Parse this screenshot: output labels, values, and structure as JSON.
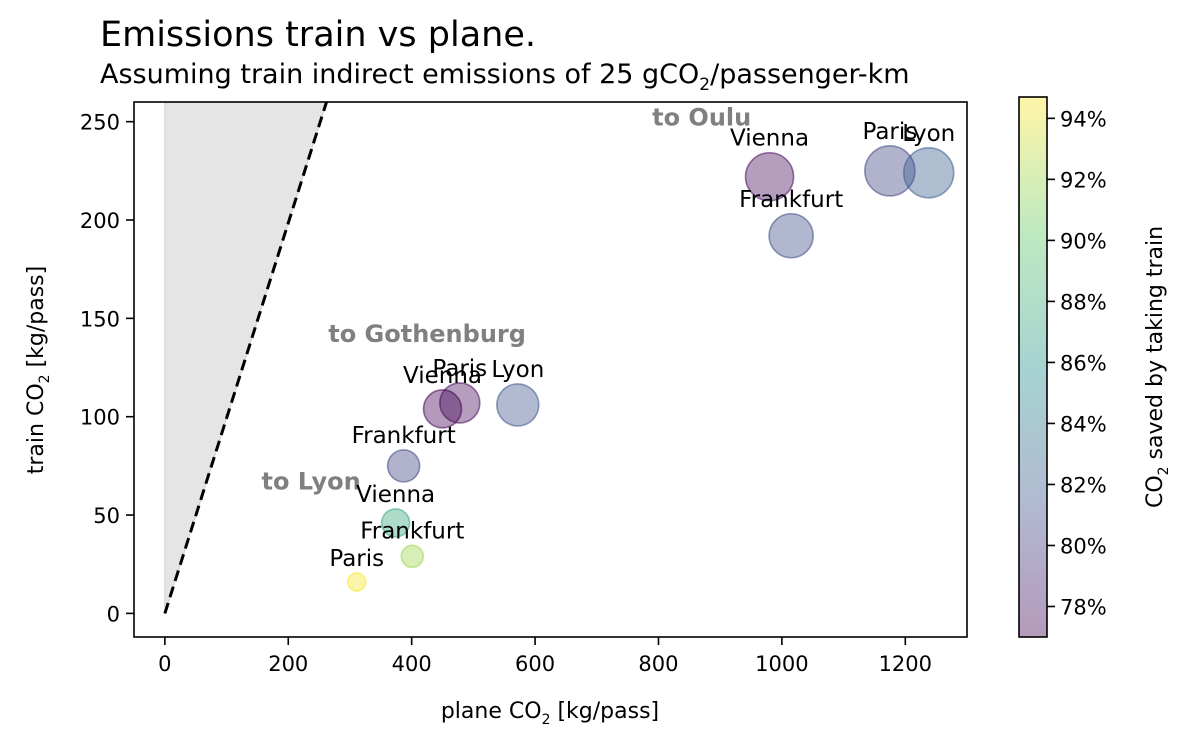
{
  "chart_data": {
    "type": "scatter",
    "title": "Emissions train vs plane.",
    "subtitle": {
      "prefix": "Assuming train indirect emissions of  25 gCO",
      "sub": "2",
      "suffix": "/passenger-km"
    },
    "xlabel": {
      "prefix": "plane CO",
      "sub": "2",
      "suffix": " [kg/pass]"
    },
    "ylabel": {
      "prefix": "train CO",
      "sub": "2",
      "suffix": " [kg/pass]"
    },
    "xlim": [
      -50,
      1300
    ],
    "ylim": [
      -12,
      260
    ],
    "xticks": [
      0,
      200,
      400,
      600,
      800,
      1000,
      1200
    ],
    "yticks": [
      0,
      50,
      100,
      150,
      200,
      250
    ],
    "grid": false,
    "reference_line": {
      "style": "dashed",
      "color": "#000000",
      "from": [
        0,
        0
      ],
      "to": [
        262,
        260
      ]
    },
    "shaded_region": {
      "color": "#d3d3d3",
      "points": [
        [
          0,
          0
        ],
        [
          0,
          260
        ],
        [
          262,
          260
        ]
      ]
    },
    "group_labels": [
      {
        "text": "to Oulu",
        "x": 870,
        "y": 248
      },
      {
        "text": "to Gothenburg",
        "x": 425,
        "y": 138
      },
      {
        "text": "to Lyon",
        "x": 237,
        "y": 63
      }
    ],
    "colorbar": {
      "label": {
        "prefix": "CO",
        "sub": "2",
        "suffix": " saved by taking train"
      },
      "min": 77,
      "max": 94.7,
      "ticks": [
        78,
        80,
        82,
        84,
        86,
        88,
        90,
        92,
        94
      ],
      "tick_suffix": "%",
      "colormap": [
        "#440154",
        "#3b528b",
        "#21918c",
        "#5ec962",
        "#fde725"
      ],
      "alpha": 0.4
    },
    "points": [
      {
        "group": "Oulu",
        "label": "Vienna",
        "plane": 980,
        "train": 222,
        "saved": 77.5,
        "size": 24
      },
      {
        "group": "Oulu",
        "label": "Paris",
        "plane": 1175,
        "train": 225,
        "saved": 80.5,
        "size": 25
      },
      {
        "group": "Oulu",
        "label": "Lyon",
        "plane": 1238,
        "train": 224,
        "saved": 82.0,
        "size": 25
      },
      {
        "group": "Oulu",
        "label": "Frankfurt",
        "plane": 1015,
        "train": 192,
        "saved": 81.0,
        "size": 22
      },
      {
        "group": "Gothenburg",
        "label": "Paris",
        "plane": 478,
        "train": 107,
        "saved": 77.5,
        "size": 20
      },
      {
        "group": "Gothenburg",
        "label": "Vienna",
        "plane": 450,
        "train": 104,
        "saved": 77.0,
        "size": 19
      },
      {
        "group": "Gothenburg",
        "label": "Lyon",
        "plane": 572,
        "train": 106,
        "saved": 81.5,
        "size": 21
      },
      {
        "group": "Gothenburg",
        "label": "Frankfurt",
        "plane": 387,
        "train": 75,
        "saved": 80.5,
        "size": 16
      },
      {
        "group": "Lyon",
        "label": "Vienna",
        "plane": 374,
        "train": 46,
        "saved": 87.5,
        "size": 14
      },
      {
        "group": "Lyon",
        "label": "Frankfurt",
        "plane": 401,
        "train": 29,
        "saved": 92.0,
        "size": 11
      },
      {
        "group": "Lyon",
        "label": "Paris",
        "plane": 311,
        "train": 16,
        "saved": 94.5,
        "size": 9
      }
    ]
  }
}
